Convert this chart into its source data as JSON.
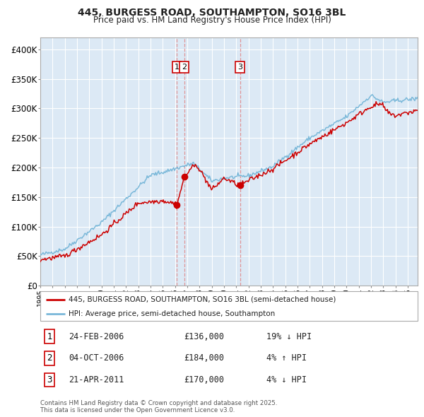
{
  "title": "445, BURGESS ROAD, SOUTHAMPTON, SO16 3BL",
  "subtitle": "Price paid vs. HM Land Registry's House Price Index (HPI)",
  "background_color": "#dce9f5",
  "plot_bg_color": "#dce9f5",
  "grid_color": "#ffffff",
  "hpi_color": "#7ab8d9",
  "price_color": "#cc0000",
  "ylim": [
    0,
    420000
  ],
  "yticks": [
    0,
    50000,
    100000,
    150000,
    200000,
    250000,
    300000,
    350000,
    400000
  ],
  "ytick_labels": [
    "£0",
    "£50K",
    "£100K",
    "£150K",
    "£200K",
    "£250K",
    "£300K",
    "£350K",
    "£400K"
  ],
  "legend_label_price": "445, BURGESS ROAD, SOUTHAMPTON, SO16 3BL (semi-detached house)",
  "legend_label_hpi": "HPI: Average price, semi-detached house, Southampton",
  "transactions": [
    {
      "num": 1,
      "date": "24-FEB-2006",
      "price": 136000,
      "pct": "19%",
      "dir": "↓",
      "x_year": 2006.13
    },
    {
      "num": 2,
      "date": "04-OCT-2006",
      "price": 184000,
      "pct": "4%",
      "dir": "↑",
      "x_year": 2006.75
    },
    {
      "num": 3,
      "date": "21-APR-2011",
      "price": 170000,
      "pct": "4%",
      "dir": "↓",
      "x_year": 2011.3
    }
  ],
  "footnote": "Contains HM Land Registry data © Crown copyright and database right 2025.\nThis data is licensed under the Open Government Licence v3.0.",
  "xlim_start": 1995.0,
  "xlim_end": 2025.8
}
